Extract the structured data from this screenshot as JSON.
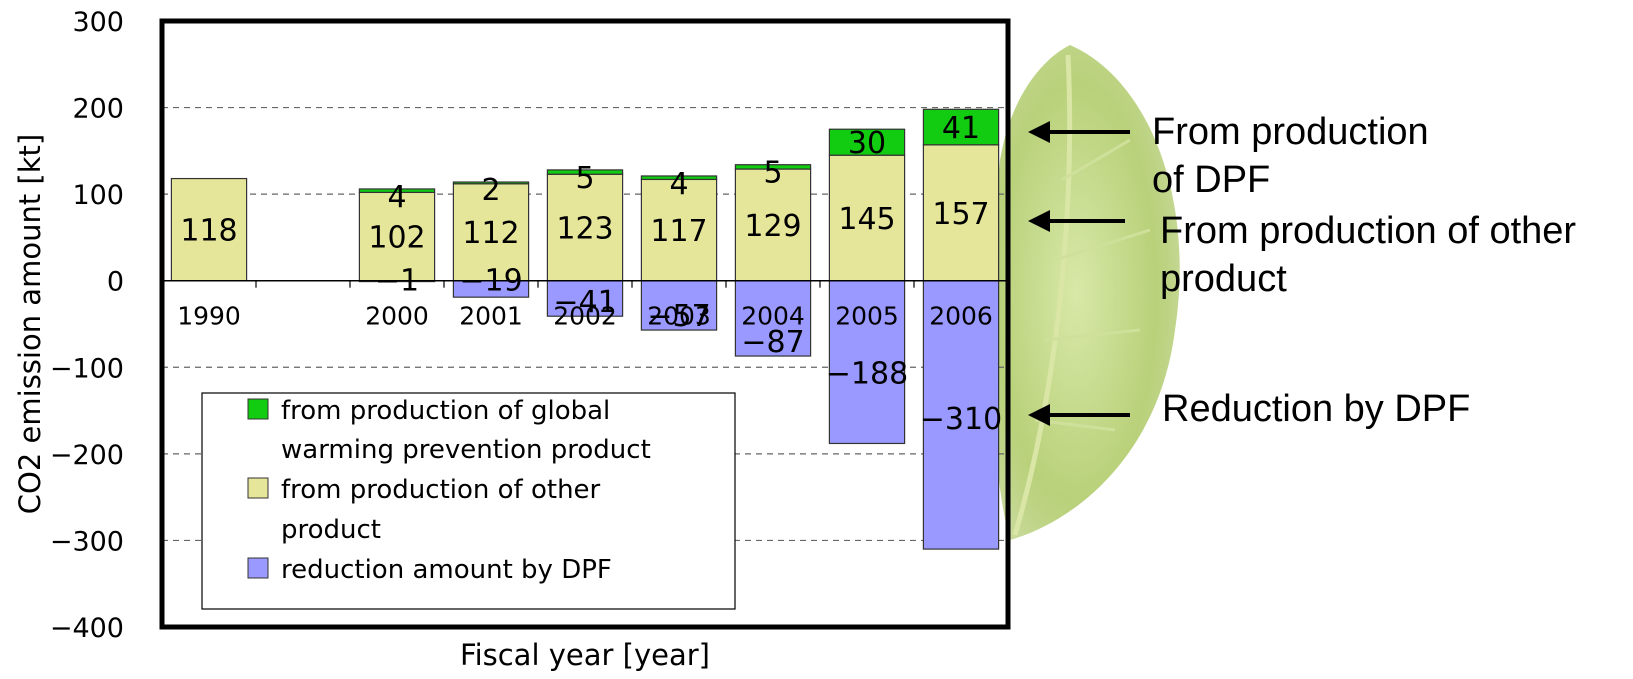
{
  "chart_data": {
    "type": "bar",
    "stacked": true,
    "title": "",
    "xlabel": "Fiscal year [year]",
    "ylabel": "CO2 emission amount [kt]",
    "ylim": [
      -400,
      300
    ],
    "yticks": [
      "300",
      "200",
      "100",
      "0",
      "−100",
      "−200",
      "−300",
      "−400"
    ],
    "grid": true,
    "categories": [
      "1990",
      "",
      "2000",
      "2001",
      "2002",
      "2003",
      "2004",
      "2005",
      "2006"
    ],
    "series": [
      {
        "name": "reduction amount by DPF",
        "color": "#9999ff",
        "values": [
          null,
          null,
          -1,
          -19,
          -41,
          -57,
          -87,
          -188,
          -310
        ],
        "labels": [
          "",
          "",
          "−1",
          "−19",
          "−41",
          "−57",
          "−87",
          "−188",
          "−310"
        ]
      },
      {
        "name": "from production of other product",
        "color": "#e6e69a",
        "values": [
          118,
          null,
          102,
          112,
          123,
          117,
          129,
          145,
          157
        ],
        "labels": [
          "118",
          "",
          "102",
          "112",
          "123",
          "117",
          "129",
          "145",
          "157"
        ]
      },
      {
        "name": "from production of global warming prevention product",
        "color": "#11cc11",
        "values": [
          null,
          null,
          4,
          2,
          5,
          4,
          5,
          30,
          41
        ],
        "labels": [
          "",
          "",
          "4",
          "2",
          "5",
          "4",
          "5",
          "30",
          "41"
        ]
      }
    ],
    "legend": {
      "position": "bottom-left",
      "items": [
        {
          "line1": "from production of global",
          "line2": "warming prevention product",
          "color": "#11cc11"
        },
        {
          "line1": "from production of other",
          "line2": "product",
          "color": "#e6e69a"
        },
        {
          "line1": "reduction amount by DPF",
          "line2": "",
          "color": "#9999ff"
        }
      ]
    }
  },
  "annotations": {
    "dpf_production": {
      "line1": "From production",
      "line2": "of DPF"
    },
    "other_production": {
      "line1": "From production of other",
      "line2": "product"
    },
    "reduction": {
      "line1": "Reduction by DPF"
    }
  }
}
